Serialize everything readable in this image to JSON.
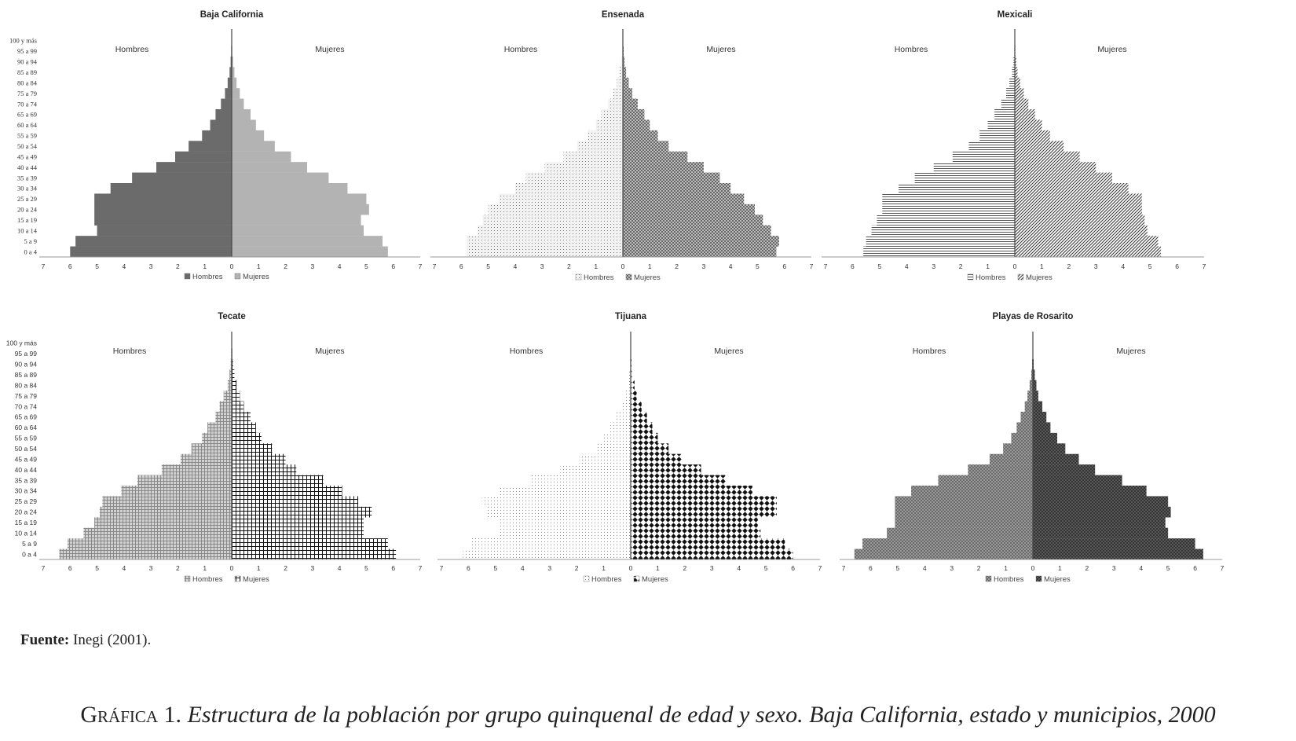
{
  "chart_data": [
    {
      "type": "bar",
      "orientation": "horizontal-pyramid",
      "title": "Baja California",
      "left_label": "Hombres",
      "right_label": "Mujeres",
      "categories": [
        "0 a 4",
        "5 a 9",
        "10 a 14",
        "15 a 19",
        "20 a 24",
        "25 a 29",
        "30 a 34",
        "35 a 39",
        "40 a 44",
        "45 a 49",
        "50 a 54",
        "55 a 59",
        "60 a 64",
        "65 a 69",
        "70 a 74",
        "75 a 79",
        "80 a 84",
        "85 a 89",
        "90 a 94",
        "95 a 99",
        "100 y más"
      ],
      "x_ticks": [
        "7",
        "6",
        "5",
        "4",
        "3",
        "2",
        "1",
        "0",
        "1",
        "2",
        "3",
        "4",
        "5",
        "6",
        "7"
      ],
      "xlim": [
        -7,
        7
      ],
      "series": [
        {
          "name": "Hombres",
          "values": [
            6.0,
            5.8,
            5.0,
            5.1,
            5.1,
            5.1,
            4.5,
            3.7,
            2.8,
            2.1,
            1.6,
            1.1,
            0.8,
            0.6,
            0.4,
            0.25,
            0.15,
            0.08,
            0.04,
            0.02,
            0.01
          ]
        },
        {
          "name": "Mujeres",
          "values": [
            5.8,
            5.6,
            4.9,
            4.8,
            5.1,
            5.0,
            4.3,
            3.6,
            2.8,
            2.2,
            1.6,
            1.2,
            0.9,
            0.7,
            0.45,
            0.3,
            0.18,
            0.1,
            0.05,
            0.02,
            0.01
          ]
        }
      ],
      "grid": false,
      "legend": "bottom",
      "colors": {
        "Hombres": "#6b6b6b",
        "Mujeres": "#b3b3b3"
      }
    },
    {
      "type": "bar",
      "orientation": "horizontal-pyramid",
      "title": "Ensenada",
      "left_label": "Hombres",
      "right_label": "Mujeres",
      "categories": [
        "0 a 4",
        "5 a 9",
        "10 a 14",
        "15 a 19",
        "20 a 24",
        "25 a 29",
        "30 a 34",
        "35 a 39",
        "40 a 44",
        "45 a 49",
        "50 a 54",
        "55 a 59",
        "60 a 64",
        "65 a 69",
        "70 a 74",
        "75 a 79",
        "80 a 84",
        "85 a 89",
        "90 a 94",
        "95 a 99",
        "100 y más"
      ],
      "x_ticks": [
        "7",
        "6",
        "5",
        "4",
        "3",
        "2",
        "1",
        "0",
        "1",
        "2",
        "3",
        "4",
        "5",
        "6",
        "7"
      ],
      "xlim": [
        -7,
        7
      ],
      "series": [
        {
          "name": "Hombres",
          "values": [
            5.8,
            5.8,
            5.4,
            5.2,
            5.0,
            4.6,
            4.0,
            3.6,
            2.9,
            2.2,
            1.7,
            1.3,
            1.0,
            0.8,
            0.55,
            0.35,
            0.22,
            0.12,
            0.06,
            0.03,
            0.01
          ]
        },
        {
          "name": "Mujeres",
          "values": [
            5.7,
            5.8,
            5.5,
            5.2,
            4.9,
            4.5,
            4.0,
            3.6,
            3.0,
            2.4,
            1.7,
            1.3,
            1.0,
            0.8,
            0.55,
            0.35,
            0.22,
            0.12,
            0.06,
            0.03,
            0.01
          ]
        }
      ],
      "grid": false,
      "legend": "bottom",
      "colors": {
        "Hombres": "#dcdcdc",
        "Mujeres": "#9c9c9c"
      }
    },
    {
      "type": "bar",
      "orientation": "horizontal-pyramid",
      "title": "Mexicali",
      "left_label": "Hombres",
      "right_label": "Mujeres",
      "categories": [
        "0 a 4",
        "5 a 9",
        "10 a 14",
        "15 a 19",
        "20 a 24",
        "25 a 29",
        "30 a 34",
        "35 a 39",
        "40 a 44",
        "45 a 49",
        "50 a 54",
        "55 a 59",
        "60 a 64",
        "65 a 69",
        "70 a 74",
        "75 a 79",
        "80 a 84",
        "85 a 89",
        "90 a 94",
        "95 a 99",
        "100 y más"
      ],
      "x_ticks": [
        "7",
        "6",
        "5",
        "4",
        "3",
        "2",
        "1",
        "0",
        "1",
        "2",
        "3",
        "4",
        "5",
        "6",
        "7"
      ],
      "xlim": [
        -7,
        7
      ],
      "series": [
        {
          "name": "Hombres",
          "values": [
            5.6,
            5.5,
            5.3,
            5.1,
            4.9,
            4.9,
            4.3,
            3.7,
            3.0,
            2.3,
            1.7,
            1.3,
            1.0,
            0.75,
            0.5,
            0.32,
            0.2,
            0.1,
            0.05,
            0.02,
            0.01
          ]
        },
        {
          "name": "Mujeres",
          "values": [
            5.4,
            5.3,
            4.9,
            4.8,
            4.7,
            4.7,
            4.2,
            3.6,
            3.0,
            2.4,
            1.8,
            1.3,
            1.0,
            0.75,
            0.5,
            0.33,
            0.2,
            0.1,
            0.05,
            0.02,
            0.01
          ]
        }
      ],
      "grid": false,
      "legend": "bottom",
      "colors": {
        "Hombres": "#ececec",
        "Mujeres": "#8a8a8a"
      }
    },
    {
      "type": "bar",
      "orientation": "horizontal-pyramid",
      "title": "Tecate",
      "left_label": "Hombres",
      "right_label": "Mujeres",
      "categories": [
        "0 a 4",
        "5 a 9",
        "10 a 14",
        "15 a 19",
        "20 a 24",
        "25 a 29",
        "30 a 34",
        "35 a 39",
        "40 a 44",
        "45 a 49",
        "50 a 54",
        "55 a 59",
        "60 a 64",
        "65 a 69",
        "70 a 74",
        "75 a 79",
        "80 a 84",
        "85 a 89",
        "90 a 94",
        "95 a 99",
        "100 y más"
      ],
      "x_ticks": [
        "7",
        "6",
        "5",
        "4",
        "3",
        "2",
        "1",
        "0",
        "1",
        "2",
        "3",
        "4",
        "5",
        "6",
        "7"
      ],
      "xlim": [
        -7,
        7
      ],
      "series": [
        {
          "name": "Hombres",
          "values": [
            6.4,
            6.1,
            5.5,
            5.1,
            4.9,
            4.8,
            4.1,
            3.5,
            2.6,
            1.9,
            1.5,
            1.1,
            0.9,
            0.6,
            0.45,
            0.3,
            0.15,
            0.08,
            0.04,
            0.02,
            0.01
          ]
        },
        {
          "name": "Mujeres",
          "values": [
            6.1,
            5.8,
            4.9,
            4.9,
            5.2,
            4.7,
            4.1,
            3.4,
            2.4,
            2.0,
            1.5,
            1.1,
            0.9,
            0.7,
            0.45,
            0.3,
            0.18,
            0.1,
            0.05,
            0.02,
            0.01
          ]
        }
      ],
      "grid": false,
      "legend": "bottom",
      "colors": {
        "Hombres": "#a9a9a9",
        "Mujeres": "#5c5c5c"
      }
    },
    {
      "type": "bar",
      "orientation": "horizontal-pyramid",
      "title": "Tijuana",
      "left_label": "Hombres",
      "right_label": "Mujeres",
      "categories": [
        "0 a 4",
        "5 a 9",
        "10 a 14",
        "15 a 19",
        "20 a 24",
        "25 a 29",
        "30 a 34",
        "35 a 39",
        "40 a 44",
        "45 a 49",
        "50 a 54",
        "55 a 59",
        "60 a 64",
        "65 a 69",
        "70 a 74",
        "75 a 79",
        "80 a 84",
        "85 a 89",
        "90 a 94",
        "95 a 99",
        "100 y más"
      ],
      "x_ticks": [
        "7",
        "6",
        "5",
        "4",
        "3",
        "2",
        "1",
        "0",
        "1",
        "2",
        "3",
        "4",
        "5",
        "6",
        "7"
      ],
      "xlim": [
        -7,
        7
      ],
      "series": [
        {
          "name": "Hombres",
          "values": [
            6.2,
            5.9,
            4.9,
            4.9,
            5.3,
            5.5,
            4.9,
            3.7,
            2.6,
            1.9,
            1.3,
            1.0,
            0.75,
            0.55,
            0.35,
            0.2,
            0.12,
            0.06,
            0.03,
            0.01,
            0.01
          ]
        },
        {
          "name": "Mujeres",
          "values": [
            6.0,
            5.7,
            4.8,
            4.7,
            5.4,
            5.4,
            4.5,
            3.5,
            2.6,
            1.9,
            1.4,
            1.0,
            0.8,
            0.6,
            0.4,
            0.22,
            0.14,
            0.07,
            0.03,
            0.01,
            0.01
          ]
        }
      ],
      "grid": false,
      "legend": "bottom",
      "colors": {
        "Hombres": "#e6e6e6",
        "Mujeres": "#1e1e1e"
      }
    },
    {
      "type": "bar",
      "orientation": "horizontal-pyramid",
      "title": "Playas de Rosarito",
      "left_label": "Hombres",
      "right_label": "Mujeres",
      "categories": [
        "0 a 4",
        "5 a 9",
        "10 a 14",
        "15 a 19",
        "20 a 24",
        "25 a 29",
        "30 a 34",
        "35 a 39",
        "40 a 44",
        "45 a 49",
        "50 a 54",
        "55 a 59",
        "60 a 64",
        "65 a 69",
        "70 a 74",
        "75 a 79",
        "80 a 84",
        "85 a 89",
        "90 a 94",
        "95 a 99",
        "100 y más"
      ],
      "x_ticks": [
        "7",
        "6",
        "5",
        "4",
        "3",
        "2",
        "1",
        "0",
        "1",
        "2",
        "3",
        "4",
        "5",
        "6",
        "7"
      ],
      "xlim": [
        -7,
        7
      ],
      "series": [
        {
          "name": "Hombres",
          "values": [
            6.6,
            6.3,
            5.4,
            5.1,
            5.1,
            5.1,
            4.5,
            3.5,
            2.4,
            1.6,
            1.1,
            0.8,
            0.6,
            0.45,
            0.3,
            0.2,
            0.12,
            0.06,
            0.03,
            0.01,
            0.01
          ]
        },
        {
          "name": "Mujeres",
          "values": [
            6.3,
            6.0,
            5.0,
            4.9,
            5.1,
            5.0,
            4.2,
            3.3,
            2.3,
            1.7,
            1.2,
            0.9,
            0.65,
            0.5,
            0.35,
            0.2,
            0.13,
            0.07,
            0.03,
            0.01,
            0.01
          ]
        }
      ],
      "grid": false,
      "legend": "bottom",
      "colors": {
        "Hombres": "#8f8f8f",
        "Mujeres": "#4a4a4a"
      }
    }
  ],
  "footer": {
    "source_label": "Fuente:",
    "source_text": "Inegi (2001).",
    "caption_lead": "Gráfica 1.",
    "caption_text": "Estructura de la población por grupo quinquenal de edad y sexo. Baja California, estado y municipios, 2000"
  }
}
